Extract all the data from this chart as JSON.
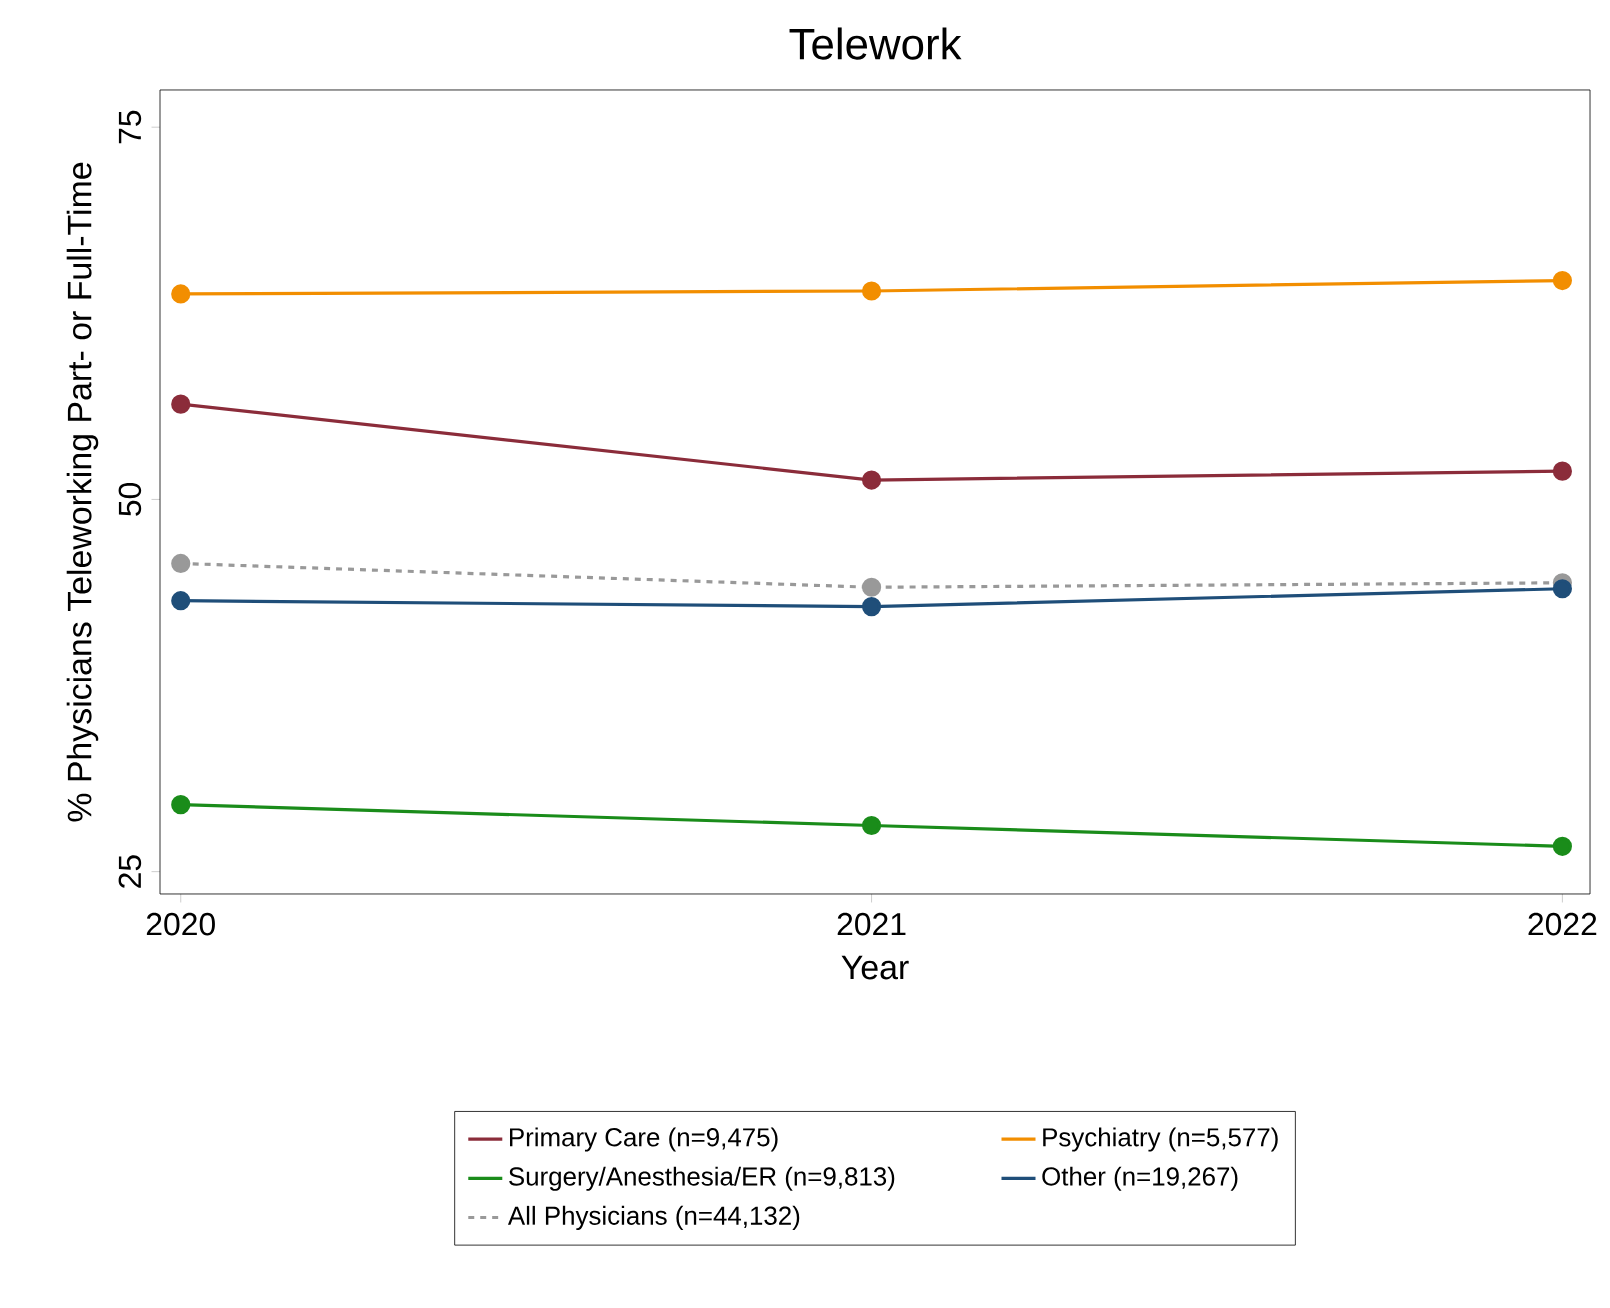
{
  "chart_data": {
    "type": "line",
    "title": "Telework",
    "xlabel": "Year",
    "ylabel": "% Physicians Teleworking Part- or Full-Time",
    "x": [
      2020,
      2021,
      2022
    ],
    "xlim": [
      2019.97,
      2022.04
    ],
    "xticks": [
      2020,
      2021,
      2022
    ],
    "ylim": [
      23.5,
      77.5
    ],
    "yticks": [
      25,
      50,
      75
    ],
    "marker": "circle",
    "legend": "bottom",
    "grid": false,
    "series": [
      {
        "name": "Primary Care (n=9,475)",
        "color": "#8b2c3a",
        "values": [
          56.4,
          51.3,
          51.9
        ]
      },
      {
        "name": "Psychiatry (n=5,577)",
        "color": "#f28e00",
        "values": [
          63.8,
          64.0,
          64.7
        ]
      },
      {
        "name": "Surgery/Anesthesia/ER (n=9,813)",
        "color": "#1a8c1a",
        "values": [
          29.5,
          28.1,
          26.7
        ]
      },
      {
        "name": "Other (n=19,267)",
        "color": "#1f4e79",
        "values": [
          43.2,
          42.8,
          44.0
        ]
      },
      {
        "name": "All Physicians (n=44,132)",
        "color": "#999999",
        "line_style": "dashed",
        "values": [
          45.7,
          44.1,
          44.4
        ]
      }
    ]
  }
}
